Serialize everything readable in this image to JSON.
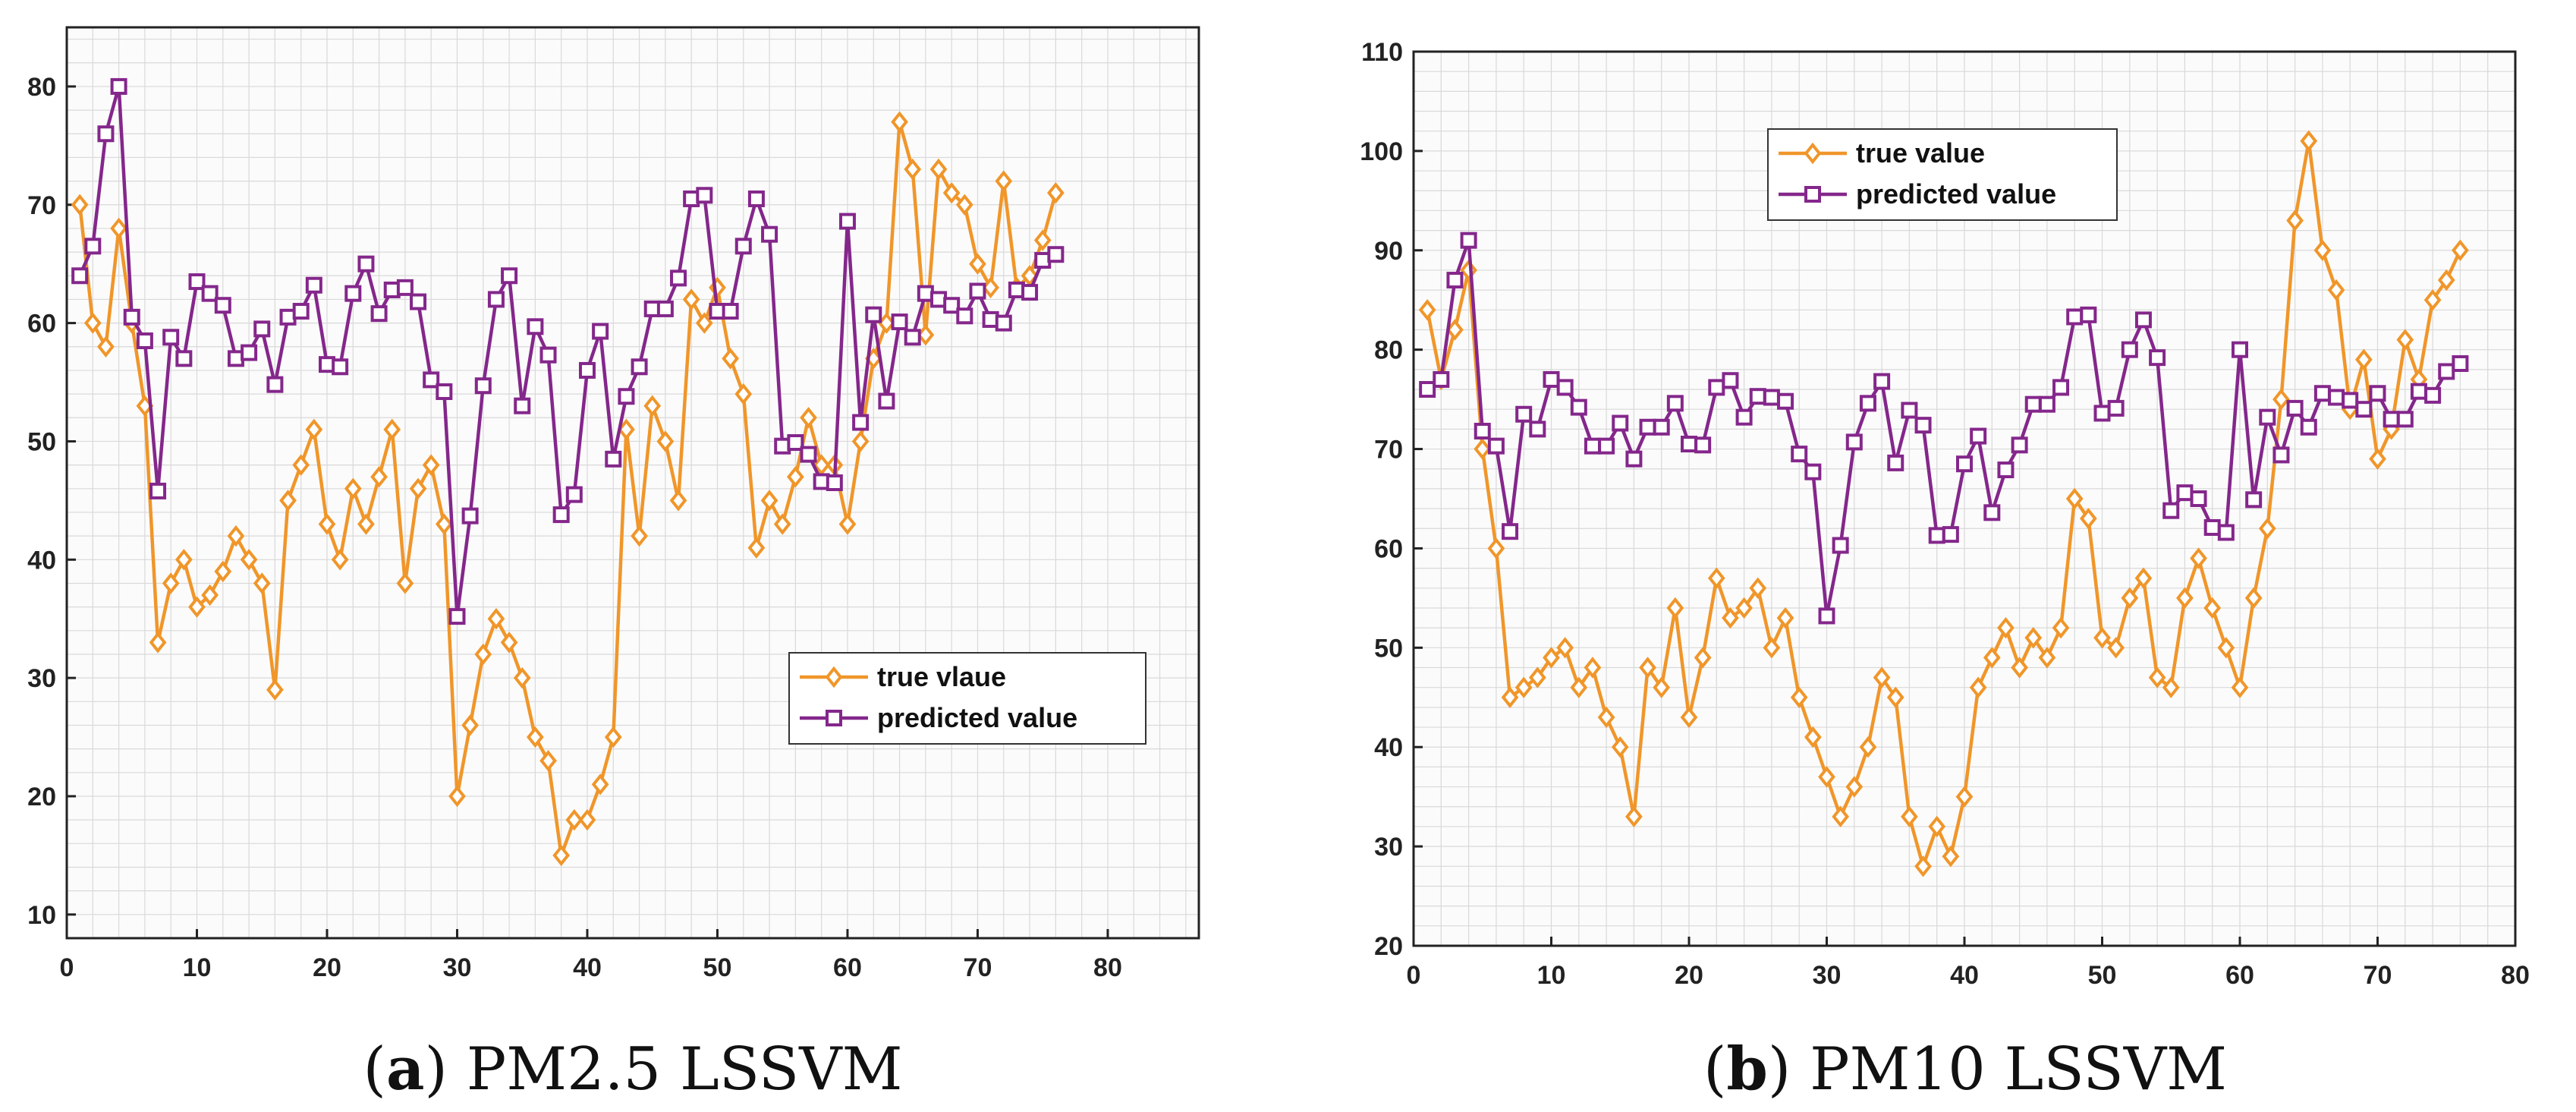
{
  "colors": {
    "true": "#f0962a",
    "pred": "#84278b",
    "grid": "#d9d9d9",
    "frame": "#222222",
    "plotbg": "#fbfbfb"
  },
  "chart_data": [
    {
      "type": "line",
      "caption_letter": "a",
      "caption_rest": " PM2.5 LSSVM",
      "xlim": [
        0,
        87
      ],
      "ylim": [
        8,
        85
      ],
      "xticks": [
        0,
        10,
        20,
        30,
        40,
        50,
        60,
        70,
        80
      ],
      "yticks": [
        10,
        20,
        30,
        40,
        50,
        60,
        70,
        80
      ],
      "legend_position": "bottom-right",
      "series": [
        {
          "name": "true vlaue",
          "key": "true",
          "marker": "diamond",
          "values": [
            70,
            60,
            58,
            68,
            60,
            53,
            33,
            38,
            40,
            36,
            37,
            39,
            42,
            40,
            38,
            29,
            45,
            48,
            51,
            43,
            40,
            46,
            43,
            47,
            51,
            38,
            46,
            48,
            43,
            20,
            26,
            32,
            35,
            33,
            30,
            25,
            23,
            15,
            18,
            18,
            21,
            25,
            51,
            42,
            53,
            50,
            45,
            62,
            60,
            63,
            57,
            54,
            41,
            45,
            43,
            47,
            52,
            48,
            48,
            43,
            50,
            57,
            60,
            77,
            73,
            59,
            73,
            71,
            70,
            65,
            63,
            72,
            63,
            64,
            67,
            71
          ]
        },
        {
          "name": "predicted value",
          "key": "pred",
          "marker": "square",
          "values": [
            64,
            66.5,
            76,
            80,
            60.5,
            58.5,
            45.8,
            58.8,
            57,
            63.5,
            62.5,
            61.5,
            57,
            57.5,
            59.5,
            54.8,
            60.5,
            61,
            63.2,
            56.5,
            56.3,
            62.5,
            65,
            60.8,
            62.8,
            63,
            61.8,
            55.2,
            54.2,
            35.2,
            43.7,
            54.7,
            62,
            64,
            53,
            59.7,
            57.3,
            43.8,
            45.5,
            56,
            59.3,
            48.5,
            53.8,
            56.3,
            61.2,
            61.2,
            63.8,
            70.5,
            70.8,
            61,
            61,
            66.5,
            70.5,
            67.5,
            49.6,
            49.9,
            48.9,
            46.6,
            46.5,
            68.6,
            51.6,
            60.7,
            53.4,
            60.1,
            58.8,
            62.5,
            62,
            61.5,
            60.6,
            62.7,
            60.3,
            60,
            62.8,
            62.6,
            65.3,
            65.8
          ]
        }
      ]
    },
    {
      "type": "line",
      "caption_letter": "b",
      "caption_rest": " PM10 LSSVM",
      "xlim": [
        0,
        80
      ],
      "ylim": [
        20,
        110
      ],
      "xticks": [
        0,
        10,
        20,
        30,
        40,
        50,
        60,
        70,
        80
      ],
      "yticks": [
        20,
        30,
        40,
        50,
        60,
        70,
        80,
        90,
        100,
        110
      ],
      "legend_position": "top-left",
      "series": [
        {
          "name": "true value",
          "key": "true",
          "marker": "diamond",
          "values": [
            84,
            77,
            82,
            88,
            70,
            60,
            45,
            46,
            47,
            49,
            50,
            46,
            48,
            43,
            40,
            33,
            48,
            46,
            54,
            43,
            49,
            57,
            53,
            54,
            56,
            50,
            53,
            45,
            41,
            37,
            33,
            36,
            40,
            47,
            45,
            33,
            28,
            32,
            29,
            35,
            46,
            49,
            52,
            48,
            51,
            49,
            52,
            65,
            63,
            51,
            50,
            55,
            57,
            47,
            46,
            55,
            59,
            54,
            50,
            46,
            55,
            62,
            75,
            93,
            101,
            90,
            86,
            74,
            79,
            69,
            72,
            81,
            77,
            85,
            87,
            90
          ]
        },
        {
          "name": "predicted value",
          "key": "pred",
          "marker": "square",
          "values": [
            76,
            77,
            87,
            91,
            71.8,
            70.3,
            61.7,
            73.5,
            72,
            77,
            76.2,
            74.2,
            70.3,
            70.3,
            72.6,
            69,
            72.2,
            72.2,
            74.6,
            70.5,
            70.4,
            76.2,
            76.9,
            73.2,
            75.3,
            75.2,
            74.8,
            69.5,
            67.7,
            53.2,
            60.3,
            70.7,
            74.6,
            76.8,
            68.6,
            73.9,
            72.4,
            61.3,
            61.4,
            68.5,
            71.3,
            63.6,
            67.9,
            70.4,
            74.5,
            74.5,
            76.2,
            83.3,
            83.5,
            73.6,
            74.1,
            80,
            83,
            79.2,
            63.8,
            65.6,
            65,
            62.1,
            61.6,
            80,
            64.9,
            73.2,
            69.4,
            74.1,
            72.2,
            75.6,
            75.2,
            74.9,
            74,
            75.6,
            73,
            73,
            75.8,
            75.4,
            77.8,
            78.6
          ]
        }
      ]
    }
  ]
}
